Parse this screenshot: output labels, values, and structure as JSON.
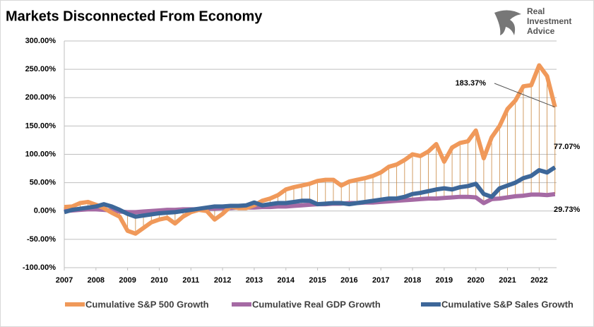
{
  "brand": [
    "Real",
    "Investment",
    "Advice"
  ],
  "chart_data": {
    "type": "line",
    "title": "Markets Disconnected From Economy",
    "x": [
      2007,
      2007.25,
      2007.5,
      2007.75,
      2008,
      2008.25,
      2008.5,
      2008.75,
      2009,
      2009.25,
      2009.5,
      2009.75,
      2010,
      2010.25,
      2010.5,
      2010.75,
      2011,
      2011.25,
      2011.5,
      2011.75,
      2012,
      2012.25,
      2012.5,
      2012.75,
      2013,
      2013.25,
      2013.5,
      2013.75,
      2014,
      2014.25,
      2014.5,
      2014.75,
      2015,
      2015.25,
      2015.5,
      2015.75,
      2016,
      2016.25,
      2016.5,
      2016.75,
      2017,
      2017.25,
      2017.5,
      2017.75,
      2018,
      2018.25,
      2018.5,
      2018.75,
      2019,
      2019.25,
      2019.5,
      2019.75,
      2020,
      2020.25,
      2020.5,
      2020.75,
      2021,
      2021.25,
      2021.5,
      2021.75,
      2022,
      2022.25,
      2022.5
    ],
    "series": [
      {
        "name": "Cumulative S&P 500 Growth",
        "color": "#f0995a",
        "values": [
          7,
          8,
          14,
          16,
          11,
          5,
          -3,
          -10,
          -35,
          -40,
          -30,
          -20,
          -15,
          -12,
          -22,
          -10,
          -2,
          2,
          0,
          -15,
          -5,
          8,
          5,
          5,
          10,
          18,
          22,
          28,
          38,
          42,
          45,
          48,
          53,
          55,
          55,
          45,
          52,
          55,
          58,
          62,
          68,
          78,
          82,
          90,
          100,
          97,
          105,
          118,
          87,
          112,
          120,
          123,
          142,
          93,
          130,
          150,
          180,
          195,
          220,
          222,
          257,
          238,
          183.37
        ],
        "value_labels": [
          null,
          null,
          null,
          null,
          null,
          null,
          null,
          null,
          null,
          null,
          null,
          null,
          null,
          null,
          null,
          null,
          null,
          null,
          null,
          null,
          null,
          null,
          null,
          null,
          null,
          null,
          null,
          null,
          null,
          null,
          null,
          null,
          null,
          null,
          null,
          null,
          null,
          null,
          null,
          null,
          null,
          null,
          null,
          null,
          null,
          null,
          null,
          null,
          null,
          null,
          null,
          null,
          null,
          null,
          null,
          null,
          null,
          null,
          null,
          null,
          null,
          null,
          "183.37%"
        ]
      },
      {
        "name": "Cumulative Real GDP Growth",
        "color": "#a56aa4",
        "values": [
          0,
          1,
          2,
          3,
          3,
          2,
          1,
          -1,
          -2,
          -2,
          -1,
          0,
          1,
          2,
          2,
          3,
          3,
          3,
          4,
          4,
          5,
          5,
          6,
          6,
          6,
          7,
          7,
          8,
          8,
          9,
          10,
          11,
          12,
          12,
          13,
          13,
          14,
          14,
          15,
          15,
          16,
          17,
          18,
          19,
          20,
          21,
          22,
          22,
          23,
          24,
          25,
          25,
          24,
          14,
          21,
          22,
          24,
          26,
          27,
          29,
          29,
          28,
          29.73
        ],
        "value_labels": [
          null,
          null,
          null,
          null,
          null,
          null,
          null,
          null,
          null,
          null,
          null,
          null,
          null,
          null,
          null,
          null,
          null,
          null,
          null,
          null,
          null,
          null,
          null,
          null,
          null,
          null,
          null,
          null,
          null,
          null,
          null,
          null,
          null,
          null,
          null,
          null,
          null,
          null,
          null,
          null,
          null,
          null,
          null,
          null,
          null,
          null,
          null,
          null,
          null,
          null,
          null,
          null,
          null,
          null,
          null,
          null,
          null,
          null,
          null,
          null,
          null,
          null,
          "29.73%"
        ]
      },
      {
        "name": "Cumulative S&P Sales Growth",
        "color": "#3d6799",
        "values": [
          -2,
          2,
          4,
          6,
          8,
          12,
          8,
          2,
          -5,
          -10,
          -8,
          -6,
          -4,
          -3,
          -2,
          0,
          2,
          4,
          6,
          8,
          8,
          9,
          9,
          10,
          15,
          10,
          12,
          14,
          14,
          16,
          18,
          18,
          12,
          13,
          14,
          14,
          12,
          14,
          16,
          18,
          20,
          22,
          22,
          25,
          30,
          32,
          35,
          38,
          40,
          38,
          42,
          44,
          48,
          30,
          25,
          40,
          45,
          50,
          58,
          62,
          72,
          68,
          77.07
        ],
        "value_labels": [
          null,
          null,
          null,
          null,
          null,
          null,
          null,
          null,
          null,
          null,
          null,
          null,
          null,
          null,
          null,
          null,
          null,
          null,
          null,
          null,
          null,
          null,
          null,
          null,
          null,
          null,
          null,
          null,
          null,
          null,
          null,
          null,
          null,
          null,
          null,
          null,
          null,
          null,
          null,
          null,
          null,
          null,
          null,
          null,
          null,
          null,
          null,
          null,
          null,
          null,
          null,
          null,
          null,
          null,
          null,
          null,
          null,
          null,
          null,
          null,
          null,
          null,
          "77.07%"
        ]
      }
    ],
    "xlim": [
      2007,
      2022.55
    ],
    "xticks": [
      2007,
      2008,
      2009,
      2010,
      2011,
      2012,
      2013,
      2014,
      2015,
      2016,
      2017,
      2018,
      2019,
      2020,
      2021,
      2022
    ],
    "ylim": [
      -100,
      300
    ],
    "yticks": [
      {
        "value": -100,
        "label": "-100.00%"
      },
      {
        "value": -50,
        "label": "-50.00%"
      },
      {
        "value": 0,
        "label": "0.00%"
      },
      {
        "value": 50,
        "label": "50.00%"
      },
      {
        "value": 100,
        "label": "100.00%"
      },
      {
        "value": 150,
        "label": "150.00%"
      },
      {
        "value": 200,
        "label": "200.00%"
      },
      {
        "value": 250,
        "label": "250.00%"
      },
      {
        "value": 300,
        "label": "300.00%"
      }
    ],
    "grid": true
  }
}
